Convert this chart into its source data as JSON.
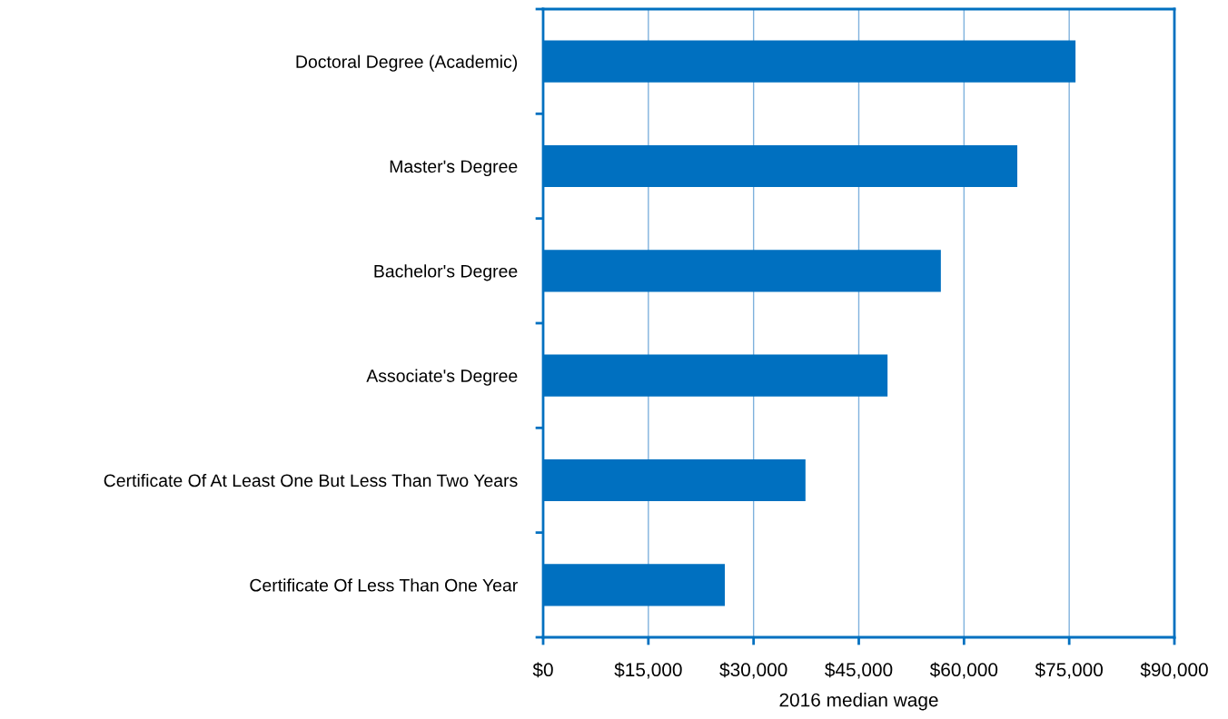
{
  "chart_data": {
    "type": "bar",
    "orientation": "horizontal",
    "xlabel": "2016 median wage",
    "categories": [
      "Doctoral Degree (Academic)",
      "Master's Degree",
      "Bachelor's Degree",
      "Associate's Degree",
      "Certificate Of At Least One But Less Than Two Years",
      "Certificate Of Less Than One Year"
    ],
    "values": [
      75900,
      67600,
      56700,
      49100,
      37400,
      25900
    ],
    "color": "#0070c0",
    "xlim": [
      0,
      90000
    ],
    "xticks": [
      {
        "value": 0,
        "label": "$0"
      },
      {
        "value": 15000,
        "label": "$15,000"
      },
      {
        "value": 30000,
        "label": "$30,000"
      },
      {
        "value": 45000,
        "label": "$45,000"
      },
      {
        "value": 60000,
        "label": "$60,000"
      },
      {
        "value": 75000,
        "label": "$75,000"
      },
      {
        "value": 90000,
        "label": "$90,000"
      }
    ],
    "grid": "x",
    "legend": false
  }
}
